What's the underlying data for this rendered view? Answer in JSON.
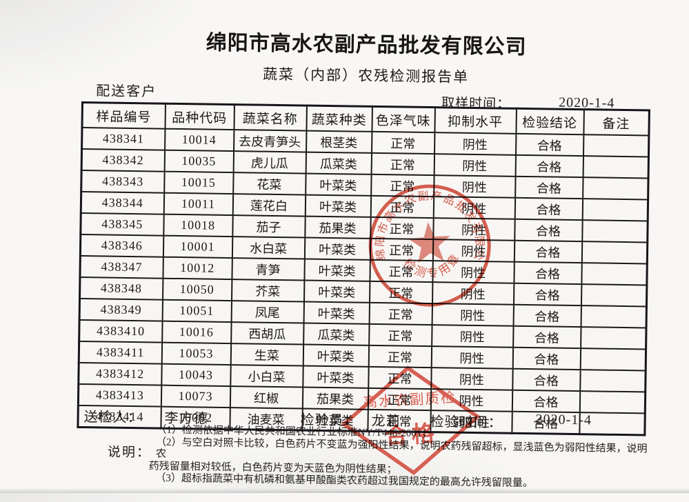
{
  "title": "绵阳市高水农副产品批发有限公司",
  "subtitle": "蔬菜（内部）农残检测报告单",
  "meta": {
    "client_label": "配送客户",
    "sampling_time_label": "取样时间：",
    "sampling_time": "2020-1-4"
  },
  "table": {
    "headers": [
      "样品编号",
      "品种代码",
      "蔬菜名称",
      "蔬菜种类",
      "色泽气味",
      "抑制水平",
      "检验结论",
      "备注"
    ],
    "rows": [
      [
        "438341",
        "10014",
        "去皮青笋头",
        "根茎类",
        "正常",
        "阴性",
        "合格",
        ""
      ],
      [
        "438342",
        "10035",
        "虎儿瓜",
        "瓜菜类",
        "正常",
        "阴性",
        "合格",
        ""
      ],
      [
        "438343",
        "10015",
        "花菜",
        "叶菜类",
        "正常",
        "阴性",
        "合格",
        ""
      ],
      [
        "438344",
        "10011",
        "莲花白",
        "叶菜类",
        "正常",
        "阴性",
        "合格",
        ""
      ],
      [
        "438345",
        "10018",
        "茄子",
        "茄果类",
        "正常",
        "阴性",
        "合格",
        ""
      ],
      [
        "438346",
        "10001",
        "水白菜",
        "叶菜类",
        "正常",
        "阴性",
        "合格",
        ""
      ],
      [
        "438347",
        "10012",
        "青笋",
        "叶菜类",
        "正常",
        "阴性",
        "合格",
        ""
      ],
      [
        "438348",
        "10050",
        "芥菜",
        "叶菜类",
        "正常",
        "阴性",
        "合格",
        ""
      ],
      [
        "438349",
        "10051",
        "凤尾",
        "叶菜类",
        "正常",
        "阴性",
        "合格",
        ""
      ],
      [
        "4383410",
        "10016",
        "西胡瓜",
        "瓜菜类",
        "正常",
        "阴性",
        "合格",
        ""
      ],
      [
        "4383411",
        "10053",
        "生菜",
        "叶菜类",
        "正常",
        "阴性",
        "合格",
        ""
      ],
      [
        "4383412",
        "10043",
        "小白菜",
        "叶菜类",
        "正常",
        "阴性",
        "合格",
        ""
      ],
      [
        "4383413",
        "10073",
        "红椒",
        "茄果类",
        "正常",
        "阴性",
        "合格",
        ""
      ],
      [
        "4383414",
        "10082",
        "油麦菜",
        "叶菜类",
        "正常",
        "弱阳性",
        "合格",
        ""
      ]
    ]
  },
  "footer": {
    "submitter_label": "送检人：",
    "submitter": "李方德",
    "inspector_label": "检验员：",
    "inspector": "龙莉",
    "inspection_time_label": "检验时间：",
    "inspection_time": "2020-1-4"
  },
  "notes": {
    "label": "说明：",
    "line1": "（1）检测依据中华人民共和国农业行业标准NY/T448-2001；",
    "line2": "（2）与空白对照卡比较，白色药片不变蓝为强阳性结果，说明农药残留超标，显浅蓝色为弱阳性结果，说明农",
    "line3": "药残留量相对较低，白色药片变为天蓝色为阴性结果；",
    "line4": "（3）超标指蔬菜中有机磷和氨基甲酸酯类农药超过我国规定的最高允许残留限量。"
  },
  "stamps": {
    "round": {
      "company": "绵阳市高水农副产品批发有限公司",
      "caption": "检测专用章",
      "color": "#c93a28"
    },
    "diamond": {
      "line1": "高水农副质检",
      "line2": "合格",
      "color": "#cf3a2a"
    }
  }
}
